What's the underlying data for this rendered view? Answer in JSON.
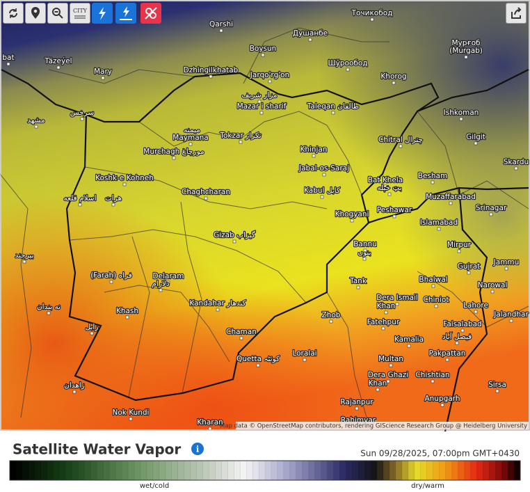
{
  "toolbar": {
    "city_button": "CITY"
  },
  "map": {
    "attribution": "Map data © OpenStreetMap contributors, rendering GIScience Research Group @ Heidelberg University",
    "labels": [
      "Точикобод",
      "Qarshi",
      "Душанбе",
      "Мурғоб",
      "(Murgab)",
      "Boysun",
      "Täzeýel",
      "bat",
      "Шўрообод",
      "Mary",
      "Dzhingilkhatab",
      "Jarqo'rg'on",
      "Khorog",
      "مزار شریف",
      "Mazar i sharif",
      "Taleqan طالقان",
      "Ishkoman",
      "سرخس",
      "مشهد",
      "میمنه",
      "Maymana",
      "Tokzar تکزار",
      "Chitral چترال",
      "Gilgit",
      "Murchagh مورچاغ",
      "Khinjan",
      "Jabal-os-Saraj",
      "Skardu",
      "Koshk-e Kohneh",
      "Bat Khela",
      "بټ خېله",
      "Besham",
      "Chaghcharan",
      "Kabul کابل",
      "Muzaffarabad",
      "اسلام قلعه",
      "هرات",
      "Peshawar",
      "Srinagar",
      "Khogyani",
      "Islamabad",
      "Gizab گیزاب",
      "Bannu",
      "بنوں",
      "Mirpur",
      "بیرجند",
      "Gujrat",
      "Jammu",
      "(Farah) فراه",
      "Delaram",
      "دلارام",
      "Bhalwal",
      "Tank",
      "Narowal",
      "Dera Ismail",
      "Khan",
      "Chiniot",
      "Lahore",
      "نه بندان",
      "Khash",
      "Kandahar کندهار",
      "Jalandhar",
      "Zhob",
      "Fatehpur",
      "Faisalabad",
      "فیصل آباد",
      "زابل",
      "Chaman",
      "Kamalia",
      "Loralai",
      "Quetta کوئٹہ",
      "Pakpattan",
      "Multan",
      "Dera Ghazi",
      "Khan",
      "Chishtian",
      "زاهدان",
      "Sirsa",
      "Anupgarh",
      "Rajanpur",
      "Nok Kundi",
      "Kharan",
      "Rahimyar"
    ]
  },
  "legend": {
    "title": "Satellite Water Vapor",
    "timestamp": "Sun 09/28/2025, 07:00pm GMT+0430",
    "low_label": "wet/cold",
    "high_label": "dry/warm"
  }
}
